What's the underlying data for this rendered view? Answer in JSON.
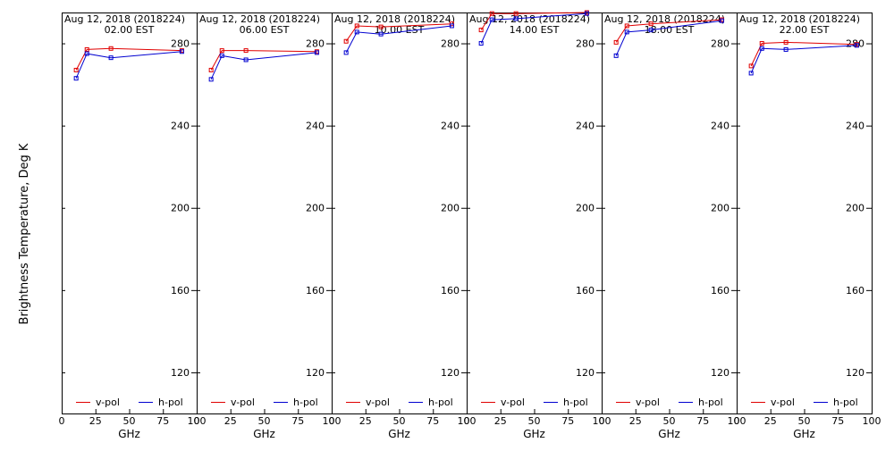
{
  "chart_data": {
    "type": "line",
    "ylabel": "Brightness Temperature, Deg K",
    "xlabel": "GHz",
    "xlim": [
      0,
      100
    ],
    "ylim": [
      100,
      295
    ],
    "x_ticks": [
      0,
      25,
      50,
      75,
      100
    ],
    "y_ticks": [
      120,
      160,
      200,
      240,
      280
    ],
    "legend": [
      "v-pol",
      "h-pol"
    ],
    "colors": {
      "v-pol": "#e00000",
      "h-pol": "#0000d0"
    },
    "grid": false,
    "panels": [
      {
        "title_date": "Aug 12, 2018 (2018224)",
        "title_time": "02.00 EST",
        "x": [
          10.7,
          18.7,
          36.5,
          89
        ],
        "series": [
          {
            "name": "v-pol",
            "values": [
              267,
              277,
              277.5,
              276.5
            ]
          },
          {
            "name": "h-pol",
            "values": [
              263,
              275,
              273,
              276
            ]
          }
        ]
      },
      {
        "title_date": "Aug 12, 2018 (2018224)",
        "title_time": "06.00 EST",
        "x": [
          10.7,
          18.7,
          36.5,
          89
        ],
        "series": [
          {
            "name": "v-pol",
            "values": [
              267,
              276.5,
              276.5,
              276
            ]
          },
          {
            "name": "h-pol",
            "values": [
              262.5,
              274,
              272,
              275.5
            ]
          }
        ]
      },
      {
        "title_date": "Aug 12, 2018 (2018224)",
        "title_time": "10.00 EST",
        "x": [
          10.7,
          18.7,
          36.5,
          89
        ],
        "series": [
          {
            "name": "v-pol",
            "values": [
              281,
              288.5,
              288,
              289.5
            ]
          },
          {
            "name": "h-pol",
            "values": [
              275.5,
              285.5,
              284.5,
              288.5
            ]
          }
        ]
      },
      {
        "title_date": "Aug 12, 2018 (2018224)",
        "title_time": "14.00 EST",
        "x": [
          10.7,
          18.7,
          36.5,
          89
        ],
        "series": [
          {
            "name": "v-pol",
            "values": [
              286.5,
              294.5,
              294.5,
              295
            ]
          },
          {
            "name": "h-pol",
            "values": [
              280,
              291.5,
              292,
              294.5
            ]
          }
        ]
      },
      {
        "title_date": "Aug 12, 2018 (2018224)",
        "title_time": "18.00 EST",
        "x": [
          10.7,
          18.7,
          36.5,
          89
        ],
        "series": [
          {
            "name": "v-pol",
            "values": [
              280.5,
              288.5,
              289.5,
              291.5
            ]
          },
          {
            "name": "h-pol",
            "values": [
              274,
              285.5,
              286.5,
              291
            ]
          }
        ]
      },
      {
        "title_date": "Aug 12, 2018 (2018224)",
        "title_time": "22.00 EST",
        "x": [
          10.7,
          18.7,
          36.5,
          89
        ],
        "series": [
          {
            "name": "v-pol",
            "values": [
              269,
              280,
              280.5,
              279.5
            ]
          },
          {
            "name": "h-pol",
            "values": [
              265.5,
              277.5,
              277,
              279
            ]
          }
        ]
      }
    ]
  }
}
